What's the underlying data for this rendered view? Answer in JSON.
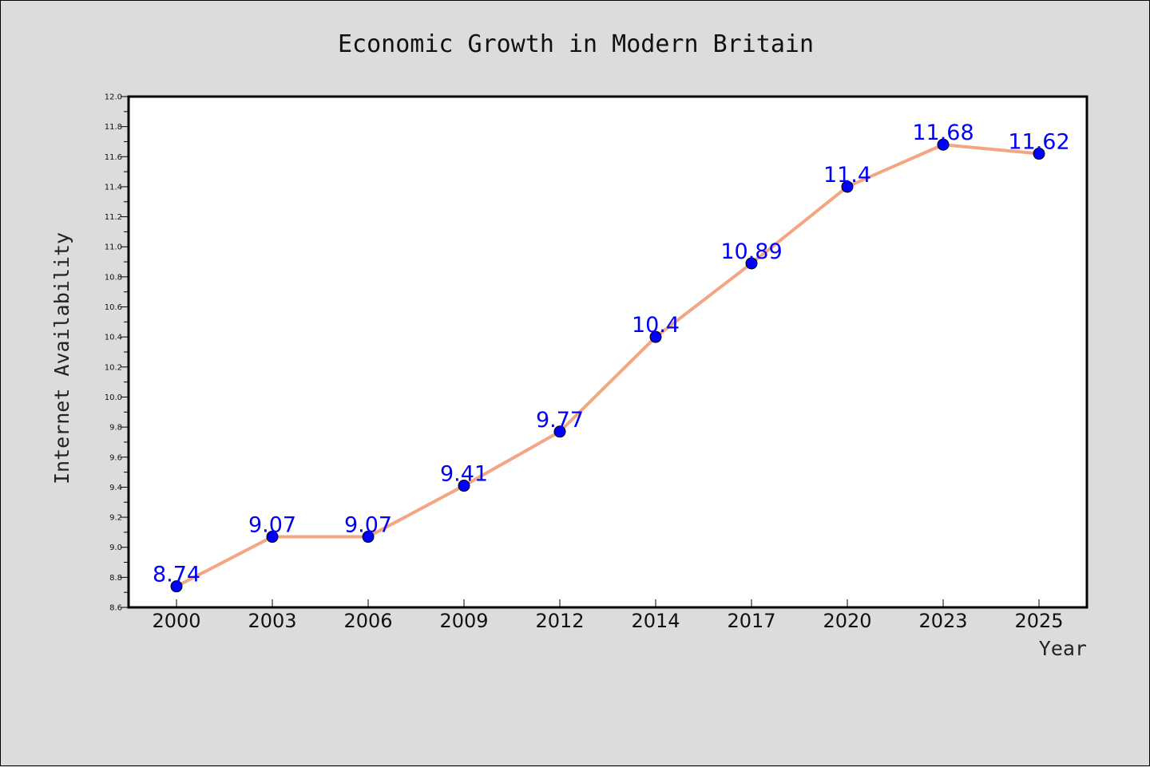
{
  "chart_data": {
    "type": "line",
    "title": "Economic Growth in Modern Britain",
    "xlabel": "Year",
    "ylabel": "Internet Availability",
    "categories": [
      "2000",
      "2003",
      "2006",
      "2009",
      "2012",
      "2014",
      "2017",
      "2020",
      "2023",
      "2025"
    ],
    "values": [
      8.74,
      9.07,
      9.07,
      9.41,
      9.77,
      10.4,
      10.89,
      11.4,
      11.68,
      11.62
    ],
    "data_labels": [
      "8.74",
      "9.07",
      "9.07",
      "9.41",
      "9.77",
      "10.4",
      "10.89",
      "11.4",
      "11.68",
      "11.62"
    ],
    "ylim": [
      8.6,
      12.0
    ],
    "yticks": [
      "8.6",
      "8.8",
      "9.0",
      "9.2",
      "9.4",
      "9.6",
      "9.8",
      "10.0",
      "10.2",
      "10.4",
      "10.6",
      "10.8",
      "11.0",
      "11.2",
      "11.4",
      "11.6",
      "11.8",
      "12.0"
    ],
    "grid": false,
    "colors": {
      "background": "#dcdcdc",
      "plot_background": "#ffffff",
      "line": "#f4a582",
      "marker": "#0000ff",
      "label": "#0000ff"
    }
  }
}
